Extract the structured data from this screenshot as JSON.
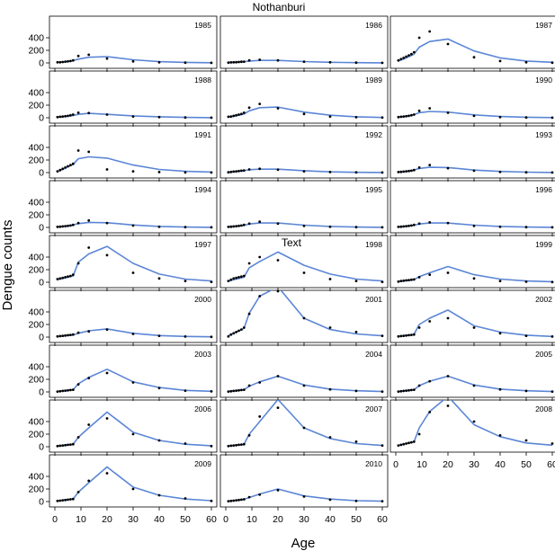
{
  "chart_data": {
    "type": "line",
    "title": "Nothanburi",
    "xlabel": "Age",
    "ylabel": "Dengue counts",
    "annotation": "Text",
    "xlim": [
      0,
      60
    ],
    "ylim": [
      0,
      700
    ],
    "x_ticks": [
      0,
      10,
      20,
      30,
      40,
      50,
      60
    ],
    "y_ticks": [
      0,
      200,
      400
    ],
    "grid": false,
    "layout": {
      "rows": 9,
      "cols": 3
    },
    "age_points": [
      1,
      2,
      3,
      4,
      5,
      6,
      7,
      9,
      13,
      20,
      30,
      40,
      50,
      60
    ],
    "panels": [
      {
        "year": "1985",
        "observed": [
          10,
          10,
          15,
          20,
          25,
          30,
          40,
          110,
          130,
          70,
          25,
          10,
          5,
          2
        ],
        "fitted": [
          8,
          12,
          16,
          20,
          24,
          30,
          38,
          60,
          90,
          100,
          50,
          20,
          8,
          3
        ]
      },
      {
        "year": "1986",
        "observed": [
          5,
          8,
          10,
          12,
          15,
          18,
          20,
          40,
          50,
          40,
          20,
          10,
          5,
          2
        ],
        "fitted": [
          5,
          7,
          9,
          12,
          14,
          17,
          20,
          30,
          40,
          40,
          22,
          10,
          5,
          2
        ]
      },
      {
        "year": "1987",
        "observed": [
          40,
          60,
          80,
          100,
          120,
          140,
          170,
          400,
          500,
          300,
          90,
          30,
          10,
          5
        ],
        "fitted": [
          30,
          45,
          60,
          80,
          100,
          120,
          140,
          250,
          340,
          380,
          190,
          80,
          30,
          10
        ]
      },
      {
        "year": "1988",
        "observed": [
          10,
          15,
          20,
          25,
          30,
          40,
          50,
          80,
          75,
          50,
          20,
          10,
          5,
          2
        ],
        "fitted": [
          8,
          12,
          16,
          20,
          25,
          30,
          36,
          55,
          70,
          55,
          30,
          15,
          6,
          2
        ]
      },
      {
        "year": "1989",
        "observed": [
          15,
          20,
          30,
          40,
          50,
          60,
          80,
          160,
          220,
          150,
          60,
          20,
          8,
          3
        ],
        "fitted": [
          10,
          15,
          22,
          30,
          40,
          50,
          60,
          110,
          160,
          170,
          90,
          40,
          15,
          5
        ]
      },
      {
        "year": "1990",
        "observed": [
          10,
          15,
          20,
          25,
          30,
          40,
          50,
          110,
          150,
          80,
          30,
          10,
          5,
          2
        ],
        "fitted": [
          8,
          12,
          18,
          25,
          32,
          40,
          50,
          80,
          100,
          90,
          45,
          20,
          8,
          3
        ]
      },
      {
        "year": "1991",
        "observed": [
          20,
          40,
          60,
          80,
          100,
          120,
          140,
          350,
          330,
          50,
          20,
          8,
          3,
          1
        ],
        "fitted": [
          20,
          35,
          50,
          70,
          90,
          110,
          130,
          220,
          250,
          230,
          120,
          50,
          20,
          8
        ]
      },
      {
        "year": "1992",
        "observed": [
          5,
          10,
          15,
          20,
          25,
          30,
          35,
          50,
          60,
          45,
          20,
          8,
          3,
          1
        ],
        "fitted": [
          5,
          8,
          12,
          16,
          20,
          25,
          30,
          45,
          55,
          55,
          30,
          12,
          5,
          2
        ]
      },
      {
        "year": "1993",
        "observed": [
          8,
          12,
          16,
          20,
          25,
          30,
          40,
          80,
          120,
          70,
          30,
          10,
          5,
          2
        ],
        "fitted": [
          6,
          10,
          14,
          20,
          26,
          32,
          40,
          65,
          85,
          80,
          40,
          18,
          7,
          2
        ]
      },
      {
        "year": "1994",
        "observed": [
          8,
          12,
          16,
          20,
          25,
          30,
          40,
          70,
          110,
          70,
          30,
          10,
          5,
          2
        ],
        "fitted": [
          6,
          10,
          14,
          20,
          26,
          32,
          40,
          60,
          80,
          75,
          38,
          16,
          6,
          2
        ]
      },
      {
        "year": "1995",
        "observed": [
          8,
          12,
          16,
          20,
          25,
          30,
          40,
          60,
          90,
          60,
          25,
          10,
          4,
          2
        ],
        "fitted": [
          6,
          9,
          13,
          18,
          23,
          29,
          35,
          55,
          70,
          70,
          36,
          15,
          6,
          2
        ]
      },
      {
        "year": "1996",
        "observed": [
          8,
          12,
          16,
          20,
          25,
          30,
          40,
          60,
          80,
          70,
          25,
          10,
          4,
          2
        ],
        "fitted": [
          6,
          9,
          13,
          18,
          23,
          29,
          35,
          55,
          70,
          70,
          36,
          15,
          6,
          2
        ]
      },
      {
        "year": "1997",
        "observed": [
          50,
          60,
          70,
          80,
          90,
          100,
          120,
          300,
          550,
          430,
          150,
          60,
          20,
          5
        ],
        "fitted": [
          40,
          50,
          60,
          70,
          80,
          90,
          100,
          320,
          450,
          570,
          300,
          130,
          50,
          20
        ]
      },
      {
        "year": "1998",
        "observed": [
          20,
          40,
          60,
          70,
          80,
          90,
          100,
          300,
          400,
          350,
          150,
          50,
          20,
          5
        ],
        "fitted": [
          20,
          30,
          40,
          50,
          60,
          70,
          80,
          230,
          330,
          480,
          270,
          130,
          50,
          20
        ]
      },
      {
        "year": "1999",
        "observed": [
          10,
          20,
          25,
          30,
          35,
          40,
          45,
          80,
          120,
          150,
          60,
          20,
          8,
          3
        ],
        "fitted": [
          10,
          15,
          20,
          25,
          30,
          35,
          40,
          90,
          150,
          250,
          120,
          50,
          20,
          8
        ]
      },
      {
        "year": "2000",
        "observed": [
          10,
          15,
          20,
          25,
          30,
          35,
          40,
          70,
          90,
          120,
          50,
          20,
          8,
          3
        ],
        "fitted": [
          8,
          12,
          16,
          20,
          25,
          30,
          35,
          60,
          100,
          130,
          60,
          25,
          10,
          4
        ]
      },
      {
        "year": "2001",
        "observed": [
          10,
          40,
          60,
          80,
          100,
          120,
          150,
          370,
          650,
          730,
          300,
          150,
          80,
          20
        ],
        "fitted": [
          20,
          40,
          60,
          80,
          100,
          120,
          140,
          380,
          650,
          800,
          300,
          120,
          50,
          20
        ]
      },
      {
        "year": "2002",
        "observed": [
          10,
          15,
          20,
          25,
          30,
          35,
          40,
          150,
          250,
          300,
          150,
          60,
          20,
          8
        ],
        "fitted": [
          10,
          15,
          20,
          25,
          30,
          35,
          45,
          200,
          300,
          430,
          180,
          80,
          30,
          10
        ]
      },
      {
        "year": "2003",
        "observed": [
          5,
          10,
          15,
          20,
          25,
          30,
          35,
          120,
          220,
          300,
          150,
          60,
          20,
          8
        ],
        "fitted": [
          5,
          10,
          15,
          20,
          25,
          30,
          35,
          130,
          230,
          360,
          160,
          70,
          25,
          10
        ]
      },
      {
        "year": "2004",
        "observed": [
          5,
          10,
          15,
          20,
          25,
          30,
          35,
          100,
          150,
          250,
          100,
          40,
          15,
          5
        ],
        "fitted": [
          5,
          10,
          15,
          20,
          25,
          30,
          35,
          90,
          160,
          250,
          110,
          45,
          18,
          6
        ]
      },
      {
        "year": "2005",
        "observed": [
          5,
          10,
          15,
          20,
          25,
          30,
          35,
          100,
          170,
          250,
          100,
          40,
          15,
          5
        ],
        "fitted": [
          5,
          10,
          15,
          20,
          25,
          30,
          35,
          100,
          170,
          250,
          110,
          45,
          18,
          6
        ]
      },
      {
        "year": "2006",
        "observed": [
          10,
          15,
          20,
          25,
          30,
          35,
          40,
          150,
          350,
          450,
          200,
          100,
          50,
          10
        ],
        "fitted": [
          10,
          15,
          20,
          25,
          30,
          35,
          40,
          150,
          300,
          550,
          230,
          100,
          40,
          15
        ]
      },
      {
        "year": "2007",
        "observed": [
          10,
          15,
          20,
          25,
          30,
          35,
          40,
          180,
          480,
          620,
          300,
          150,
          80,
          20
        ],
        "fitted": [
          10,
          15,
          20,
          25,
          30,
          35,
          40,
          200,
          400,
          750,
          300,
          130,
          50,
          20
        ]
      },
      {
        "year": "2008",
        "observed": [
          20,
          30,
          40,
          50,
          60,
          70,
          80,
          200,
          550,
          650,
          400,
          180,
          100,
          50
        ],
        "fitted": [
          20,
          30,
          40,
          50,
          60,
          70,
          80,
          300,
          560,
          800,
          350,
          160,
          60,
          25
        ]
      },
      {
        "year": "2009",
        "observed": [
          10,
          15,
          20,
          25,
          30,
          35,
          40,
          150,
          330,
          450,
          200,
          100,
          50,
          10
        ],
        "fitted": [
          10,
          15,
          20,
          25,
          30,
          35,
          40,
          150,
          300,
          550,
          230,
          100,
          40,
          15
        ]
      },
      {
        "year": "2010",
        "observed": [
          5,
          10,
          15,
          20,
          25,
          30,
          35,
          70,
          110,
          180,
          80,
          30,
          10,
          5
        ],
        "fitted": [
          5,
          10,
          15,
          20,
          25,
          30,
          35,
          65,
          120,
          200,
          90,
          40,
          15,
          5
        ]
      }
    ]
  }
}
